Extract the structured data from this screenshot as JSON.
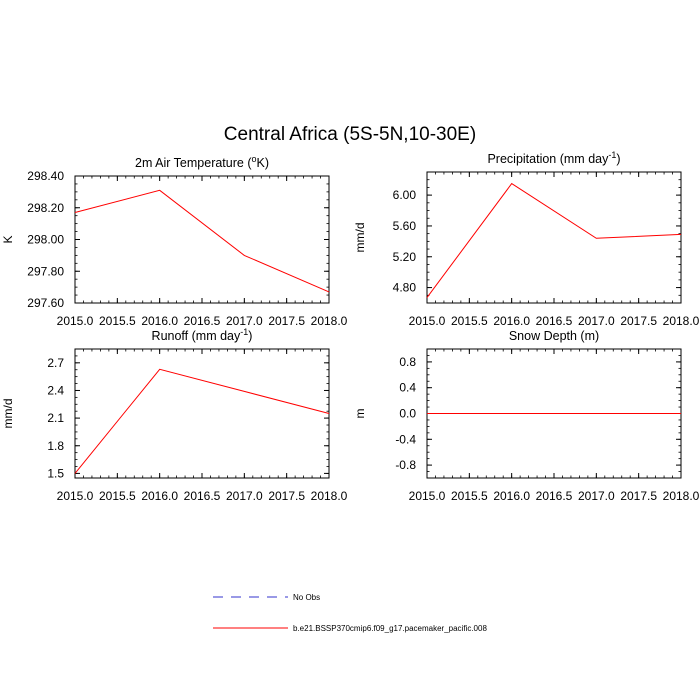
{
  "figure": {
    "title": "Central Africa (5S-5N,10-30E)"
  },
  "legend": {
    "position": "bottom-center",
    "entries": [
      {
        "label": "No Obs",
        "color": "#3333cc",
        "style": "dashed"
      },
      {
        "label": "b.e21.BSSP370cmip6.f09_g17.pacemaker_pacific.008",
        "color": "#ff0000",
        "style": "solid"
      }
    ]
  },
  "chart_data": [
    {
      "type": "line",
      "title": "2m Air Temperature (°K)",
      "title_main": "2m Air Temperature (",
      "title_sup": "o",
      "title_end": "K)",
      "xlabel": "",
      "ylabel": "K",
      "xlim": [
        2015.0,
        2018.0
      ],
      "ylim": [
        297.6,
        298.4
      ],
      "xticks": [
        2015.0,
        2015.5,
        2016.0,
        2016.5,
        2017.0,
        2017.5,
        2018.0
      ],
      "xtick_labels": [
        "2015.0",
        "2015.5",
        "2016.0",
        "2016.5",
        "2017.0",
        "2017.5",
        "2018.0"
      ],
      "yticks": [
        297.6,
        297.8,
        298.0,
        298.2,
        298.4
      ],
      "ytick_labels": [
        "297.60",
        "297.80",
        "298.00",
        "298.20",
        "298.40"
      ],
      "grid": false,
      "series": [
        {
          "name": "b.e21.BSSP370cmip6.f09_g17.pacemaker_pacific.008",
          "color": "#ff0000",
          "x": [
            2015,
            2016,
            2017,
            2018
          ],
          "y": [
            298.17,
            298.31,
            297.9,
            297.67
          ]
        }
      ]
    },
    {
      "type": "line",
      "title": "Precipitation (mm day-1)",
      "title_main": "Precipitation (mm day",
      "title_sup": "-1",
      "title_end": ")",
      "xlabel": "",
      "ylabel": "mm/d",
      "xlim": [
        2015.0,
        2018.0
      ],
      "ylim": [
        4.6,
        6.3
      ],
      "xticks": [
        2015.0,
        2015.5,
        2016.0,
        2016.5,
        2017.0,
        2017.5,
        2018.0
      ],
      "xtick_labels": [
        "2015.0",
        "2015.5",
        "2016.0",
        "2016.5",
        "2017.0",
        "2017.5",
        "2018.0"
      ],
      "yticks": [
        4.8,
        5.2,
        5.6,
        6.0
      ],
      "ytick_labels": [
        "4.80",
        "5.20",
        "5.60",
        "6.00"
      ],
      "grid": false,
      "series": [
        {
          "name": "b.e21.BSSP370cmip6.f09_g17.pacemaker_pacific.008",
          "color": "#ff0000",
          "x": [
            2015,
            2016,
            2017,
            2018
          ],
          "y": [
            4.67,
            6.15,
            5.44,
            5.49
          ]
        }
      ]
    },
    {
      "type": "line",
      "title": "Runoff (mm day-1)",
      "title_main": "Runoff (mm day",
      "title_sup": "-1",
      "title_end": ")",
      "xlabel": "",
      "ylabel": "mm/d",
      "xlim": [
        2015.0,
        2018.0
      ],
      "ylim": [
        1.45,
        2.85
      ],
      "xticks": [
        2015.0,
        2015.5,
        2016.0,
        2016.5,
        2017.0,
        2017.5,
        2018.0
      ],
      "xtick_labels": [
        "2015.0",
        "2015.5",
        "2016.0",
        "2016.5",
        "2017.0",
        "2017.5",
        "2018.0"
      ],
      "yticks": [
        1.5,
        1.8,
        2.1,
        2.4,
        2.7
      ],
      "ytick_labels": [
        "1.5",
        "1.8",
        "2.1",
        "2.4",
        "2.7"
      ],
      "grid": false,
      "series": [
        {
          "name": "b.e21.BSSP370cmip6.f09_g17.pacemaker_pacific.008",
          "color": "#ff0000",
          "x": [
            2015,
            2016,
            2017,
            2018
          ],
          "y": [
            1.5,
            2.63,
            2.39,
            2.15
          ]
        }
      ]
    },
    {
      "type": "line",
      "title": "Snow Depth (m)",
      "title_main": "Snow Depth (m)",
      "title_sup": "",
      "title_end": "",
      "xlabel": "",
      "ylabel": "m",
      "xlim": [
        2015.0,
        2018.0
      ],
      "ylim": [
        -1.0,
        1.0
      ],
      "xticks": [
        2015.0,
        2015.5,
        2016.0,
        2016.5,
        2017.0,
        2017.5,
        2018.0
      ],
      "xtick_labels": [
        "2015.0",
        "2015.5",
        "2016.0",
        "2016.5",
        "2017.0",
        "2017.5",
        "2018.0"
      ],
      "yticks": [
        -0.8,
        -0.4,
        0.0,
        0.4,
        0.8
      ],
      "ytick_labels": [
        "-0.8",
        "-0.4",
        "0.0",
        "0.4",
        "0.8"
      ],
      "grid": false,
      "series": [
        {
          "name": "b.e21.BSSP370cmip6.f09_g17.pacemaker_pacific.008",
          "color": "#ff0000",
          "x": [
            2015,
            2016,
            2017,
            2018
          ],
          "y": [
            0.0,
            0.0,
            0.0,
            0.0
          ]
        }
      ]
    }
  ]
}
